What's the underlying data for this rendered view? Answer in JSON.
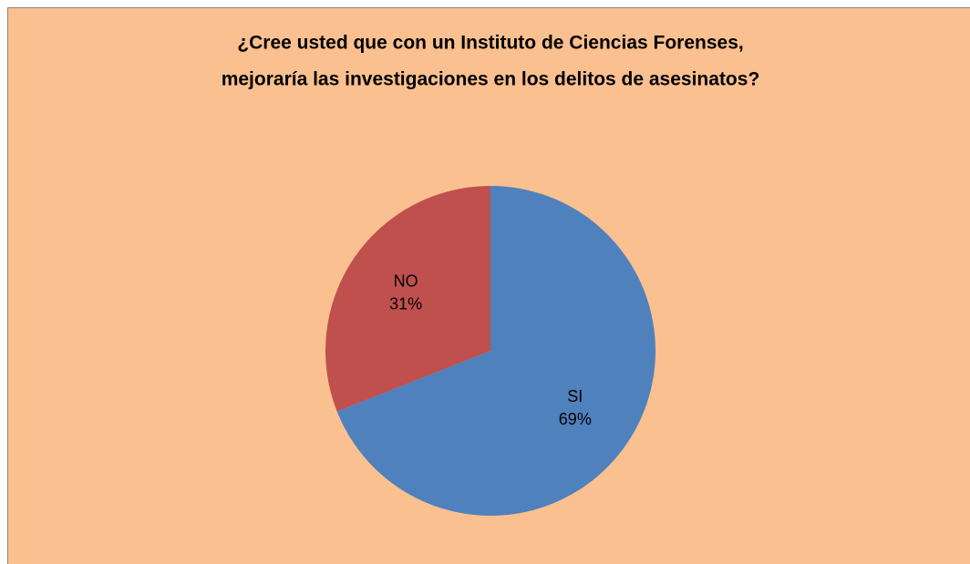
{
  "chart_data": {
    "type": "pie",
    "title": [
      "¿Cree usted que con un Instituto de Ciencias Forenses,",
      "mejoraría las investigaciones en los delitos de asesinatos?"
    ],
    "categories": [
      "SI",
      "NO"
    ],
    "values": [
      69,
      31
    ],
    "value_labels": [
      "69%",
      "31%"
    ],
    "colors": [
      "#4f81bd",
      "#c0504d"
    ]
  }
}
